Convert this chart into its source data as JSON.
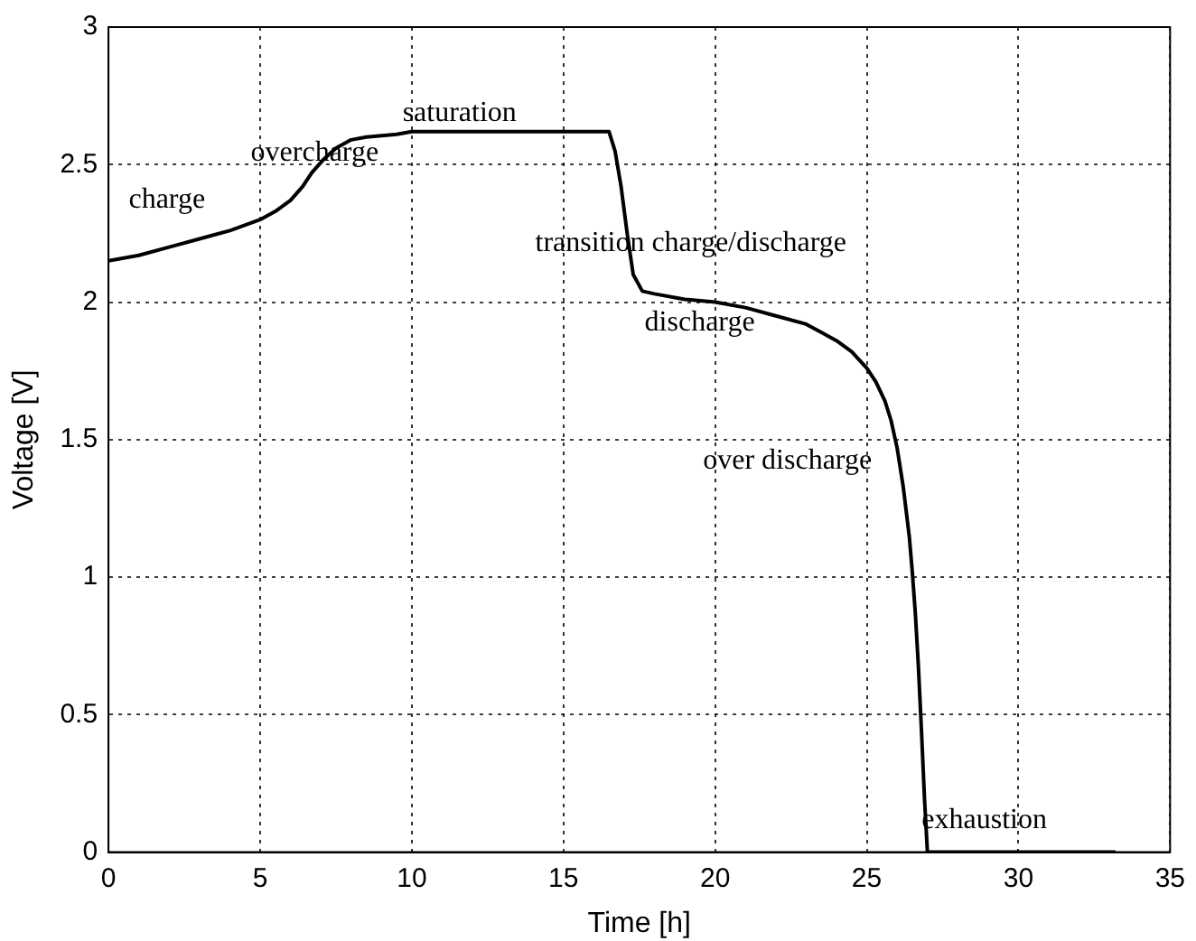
{
  "chart_data": {
    "type": "line",
    "xlabel": "Time [h]",
    "ylabel": "Voltage [V]",
    "xlim": [
      0,
      35
    ],
    "xticks": [
      0,
      5,
      10,
      15,
      20,
      25,
      30,
      35
    ],
    "ylim": [
      0,
      3
    ],
    "yticks": [
      0,
      0.5,
      1,
      1.5,
      2,
      2.5,
      3
    ],
    "grid": true,
    "legend": false,
    "marker": "none",
    "line_style": "solid",
    "series": [
      {
        "color": "#000000",
        "x": [
          0,
          1,
          2,
          3,
          4,
          5,
          5.5,
          6,
          6.4,
          6.7,
          7.1,
          7.5,
          8,
          8.5,
          9.5,
          10,
          12,
          14,
          16,
          16.5,
          16.7,
          16.9,
          17.1,
          17.3,
          17.6,
          18,
          19,
          20,
          21,
          22,
          23,
          23.5,
          24,
          24.5,
          25,
          25.3,
          25.6,
          25.8,
          26,
          26.2,
          26.4,
          26.5,
          26.6,
          26.7,
          26.8,
          26.9,
          27,
          30,
          33.2
        ],
        "values": [
          2.15,
          2.17,
          2.2,
          2.23,
          2.26,
          2.3,
          2.33,
          2.37,
          2.42,
          2.47,
          2.52,
          2.56,
          2.59,
          2.6,
          2.61,
          2.62,
          2.62,
          2.62,
          2.62,
          2.62,
          2.55,
          2.42,
          2.25,
          2.1,
          2.04,
          2.03,
          2.01,
          2.0,
          1.98,
          1.95,
          1.92,
          1.89,
          1.86,
          1.82,
          1.76,
          1.71,
          1.64,
          1.57,
          1.47,
          1.33,
          1.15,
          1.02,
          0.87,
          0.68,
          0.45,
          0.2,
          0,
          0,
          0
        ]
      }
    ],
    "annotations": [
      "charge",
      "overcharge",
      "saturation",
      "transition charge/discharge",
      "discharge",
      "over discharge",
      "exhaustion"
    ]
  }
}
